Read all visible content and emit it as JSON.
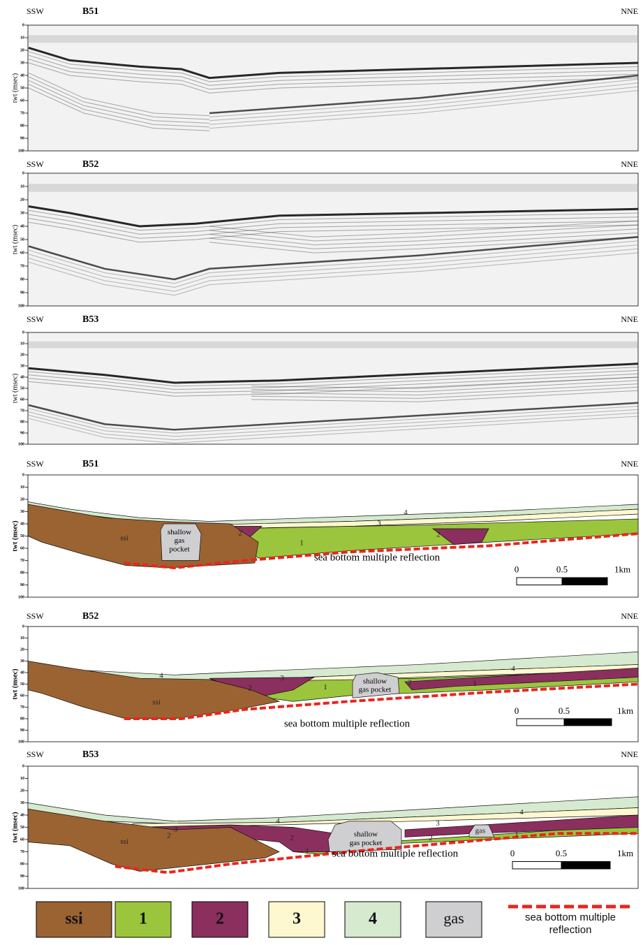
{
  "seismic_profiles": [
    {
      "left": "SSW",
      "right": "NNE",
      "title": "B51",
      "y_label": "twt (msec)",
      "y_ticks": [
        0,
        10,
        20,
        30,
        40,
        50,
        60,
        70,
        80,
        90,
        100
      ]
    },
    {
      "left": "SSW",
      "right": "NNE",
      "title": "B52",
      "y_label": "twt (msec)",
      "y_ticks": [
        0,
        10,
        20,
        30,
        40,
        50,
        60,
        70,
        80,
        90,
        100
      ]
    },
    {
      "left": "SSW",
      "right": "NNE",
      "title": "B53",
      "y_label": "twt (msec)",
      "y_ticks": [
        0,
        10,
        20,
        30,
        40,
        50,
        60,
        70,
        80,
        90,
        100
      ]
    }
  ],
  "interpretations": [
    {
      "left": "SSW",
      "right": "NNE",
      "title": "B51",
      "y_label": "twt (msec)",
      "y_ticks": [
        0,
        10,
        20,
        30,
        40,
        50,
        60,
        70,
        80,
        90,
        100
      ],
      "unit_labels": [
        "ssi",
        "2",
        "1",
        "3",
        "4",
        "2"
      ],
      "gas_pocket": [
        "shallow",
        "gas",
        "pocket"
      ],
      "multiple_label": "sea bottom multiple reflection",
      "scale": [
        "0",
        "0.5",
        "1km"
      ]
    },
    {
      "left": "SSW",
      "right": "NNE",
      "title": "B52",
      "y_label": "twt (msec)",
      "y_ticks": [
        0,
        10,
        20,
        30,
        40,
        50,
        60,
        70,
        80,
        90,
        100
      ],
      "unit_labels": [
        "4",
        "ssi",
        "2",
        "3",
        "1",
        "2",
        "1",
        "4"
      ],
      "gas_pocket": [
        "shallow",
        "gas pocket"
      ],
      "multiple_label": "sea bottom multiple reflection",
      "scale": [
        "0",
        "0.5",
        "1km"
      ]
    },
    {
      "left": "SSW",
      "right": "NNE",
      "title": "B53",
      "y_label": "twt (msec)",
      "y_ticks": [
        0,
        10,
        20,
        30,
        40,
        50,
        60,
        70,
        80,
        90,
        100
      ],
      "unit_labels": [
        "ssi",
        "3",
        "2",
        "4",
        "2",
        "1",
        "3",
        "2",
        "gas",
        "1",
        "4"
      ],
      "gas_pocket": [
        "shallow",
        "gas pocket"
      ],
      "multiple_label": "sea bottom multiple reflection",
      "scale": [
        "0",
        "0.5",
        "1km"
      ]
    }
  ],
  "legend": [
    {
      "label": "ssi",
      "color": "#9b6332"
    },
    {
      "label": "1",
      "color": "#9bc53d"
    },
    {
      "label": "2",
      "color": "#8b2f5e"
    },
    {
      "label": "3",
      "color": "#fdf8cf"
    },
    {
      "label": "4",
      "color": "#d6ead0"
    },
    {
      "label": "gas",
      "color": "#cfcfd1"
    },
    {
      "label": "sea bottom multiple reflection",
      "color": "#e8261d"
    }
  ]
}
